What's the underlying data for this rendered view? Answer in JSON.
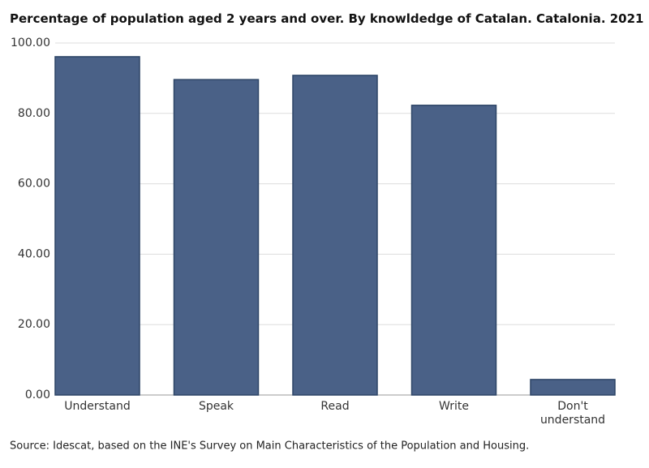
{
  "chart_data": {
    "type": "bar",
    "title": "Percentage of population aged 2 years and over. By knowldedge of Catalan. Catalonia. 2021",
    "source": "Source: Idescat, based on the INE's Survey on Main Characteristics of the Population and Housing.",
    "categories": [
      "Understand",
      "Speak",
      "Read",
      "Write",
      "Don't understand"
    ],
    "values": [
      96.1,
      89.6,
      90.8,
      82.3,
      4.4
    ],
    "color": "#4a6187",
    "ylim": [
      0,
      100
    ],
    "yticks": [
      {
        "value": 0,
        "label": "0.00"
      },
      {
        "value": 20,
        "label": "20.00"
      },
      {
        "value": 40,
        "label": "40.00"
      },
      {
        "value": 60,
        "label": "60.00"
      },
      {
        "value": 80,
        "label": "80.00"
      },
      {
        "value": 100,
        "label": "100.00"
      }
    ],
    "grid": true
  }
}
